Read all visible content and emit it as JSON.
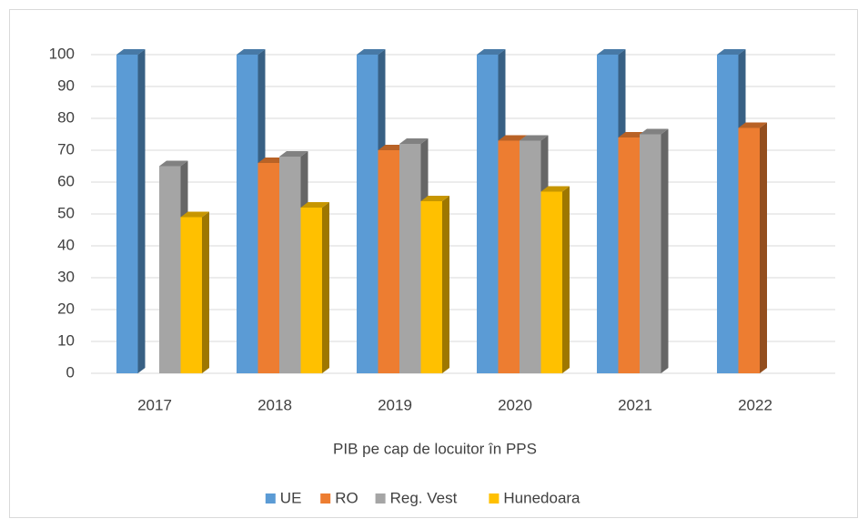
{
  "chart_data": {
    "type": "bar3d",
    "categories": [
      "2017",
      "2018",
      "2019",
      "2020",
      "2021",
      "2022"
    ],
    "series": [
      {
        "name": "UE",
        "color": "#5b9bd5",
        "values": [
          100,
          100,
          100,
          100,
          100,
          100
        ]
      },
      {
        "name": "RO",
        "color": "#ed7d31",
        "values": [
          null,
          66,
          70,
          73,
          74,
          77
        ]
      },
      {
        "name": "Reg. Vest",
        "color": "#a5a5a5",
        "values": [
          65,
          68,
          72,
          73,
          75,
          null
        ]
      },
      {
        "name": "Hunedoara",
        "color": "#ffc000",
        "values": [
          49,
          52,
          54,
          57,
          null,
          null
        ]
      }
    ],
    "x_label": "PIB pe cap de locuitor în PPS",
    "ylim": [
      0,
      100
    ],
    "yticks": [
      0,
      10,
      20,
      30,
      40,
      50,
      60,
      70,
      80,
      90,
      100
    ],
    "grid": true,
    "legend": "bottom"
  }
}
